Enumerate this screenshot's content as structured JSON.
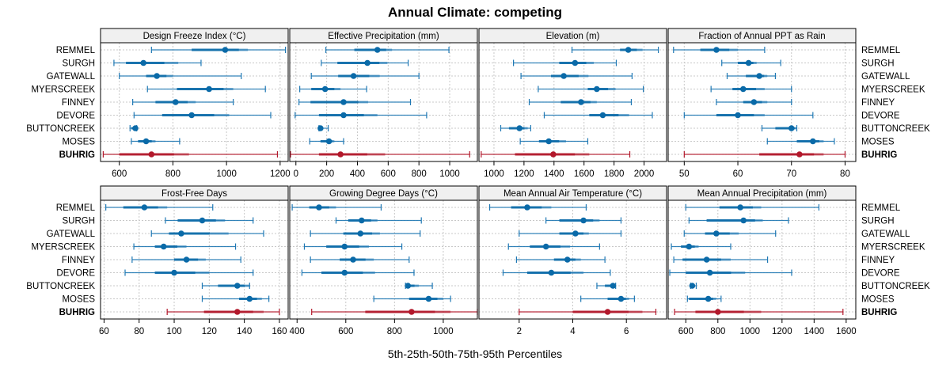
{
  "chart_data": {
    "type": "dot-interval",
    "title": "Annual Climate: competing",
    "xlabel": "5th-25th-50th-75th-95th Percentiles",
    "categories": [
      "REMMEL",
      "SURGH",
      "GATEWALL",
      "MYERSCREEK",
      "FINNEY",
      "DEVORE",
      "BUTTONCREEK",
      "MOSES",
      "BUHRIG"
    ],
    "highlight_category": "BUHRIG",
    "colors": {
      "default": "#1f78b4",
      "default_point": "#0a6aa8",
      "highlight": "#b2182b",
      "strip_bg": "#f0f0f0",
      "grid": "#c8c8c8"
    },
    "grid": true,
    "panels": [
      {
        "title": "Design Freeze Index (°C)",
        "ticks": [
          600,
          800,
          1000,
          1200
        ],
        "xlim": [
          530,
          1230
        ],
        "percentiles": [
          [
            720,
            870,
            995,
            1080,
            1220
          ],
          [
            580,
            625,
            690,
            820,
            905
          ],
          [
            600,
            700,
            740,
            800,
            1055
          ],
          [
            705,
            815,
            935,
            1025,
            1145
          ],
          [
            650,
            735,
            810,
            885,
            1025
          ],
          [
            655,
            760,
            870,
            1010,
            1165
          ],
          [
            640,
            645,
            660,
            662,
            665
          ],
          [
            645,
            670,
            700,
            735,
            825
          ],
          [
            540,
            600,
            720,
            860,
            1190
          ]
        ]
      },
      {
        "title": "Effective Precipitation (mm)",
        "ticks": [
          0,
          200,
          400,
          600,
          800,
          1000
        ],
        "xlim": [
          -40,
          1180
        ],
        "percentiles": [
          [
            195,
            380,
            530,
            625,
            995
          ],
          [
            165,
            270,
            465,
            595,
            730
          ],
          [
            100,
            275,
            375,
            545,
            800
          ],
          [
            25,
            100,
            190,
            290,
            460
          ],
          [
            20,
            95,
            310,
            470,
            745
          ],
          [
            -5,
            150,
            310,
            530,
            850
          ],
          [
            150,
            155,
            160,
            175,
            210
          ],
          [
            90,
            160,
            215,
            250,
            310
          ],
          [
            -35,
            150,
            290,
            580,
            1130
          ]
        ]
      },
      {
        "title": "Elevation (m)",
        "ticks": [
          1000,
          1200,
          1400,
          1600,
          1800,
          2000
        ],
        "xlim": [
          900,
          2150
        ],
        "percentiles": [
          [
            1520,
            1840,
            1895,
            1990,
            2095
          ],
          [
            1130,
            1435,
            1540,
            1665,
            1815
          ],
          [
            1180,
            1380,
            1465,
            1630,
            1920
          ],
          [
            1295,
            1625,
            1685,
            1810,
            1995
          ],
          [
            1235,
            1445,
            1580,
            1685,
            1915
          ],
          [
            1335,
            1635,
            1725,
            1900,
            2055
          ],
          [
            1045,
            1100,
            1170,
            1225,
            1245
          ],
          [
            1175,
            1300,
            1365,
            1480,
            1625
          ],
          [
            915,
            1140,
            1395,
            1635,
            1905
          ]
        ]
      },
      {
        "title": "Fraction of Annual PPT as Rain",
        "ticks": [
          50,
          60,
          70,
          80
        ],
        "xlim": [
          47,
          82
        ],
        "percentiles": [
          [
            48,
            53,
            56,
            60,
            65
          ],
          [
            57,
            60,
            62,
            63.5,
            68
          ],
          [
            58,
            61.5,
            64,
            65.5,
            67
          ],
          [
            55,
            59,
            61,
            65,
            70
          ],
          [
            56,
            61,
            63,
            65.5,
            70
          ],
          [
            50,
            56,
            60,
            65,
            74
          ],
          [
            64.5,
            67,
            70,
            71,
            71
          ],
          [
            65.5,
            71,
            74,
            76,
            78
          ],
          [
            50,
            64,
            71.5,
            76,
            80
          ]
        ]
      },
      {
        "title": "Frost-Free Days",
        "ticks": [
          60,
          80,
          100,
          120,
          140,
          160
        ],
        "xlim": [
          58,
          165
        ],
        "percentiles": [
          [
            61,
            71,
            83,
            96,
            122
          ],
          [
            95,
            102,
            116,
            129,
            145
          ],
          [
            87,
            97,
            104,
            131,
            151
          ],
          [
            77,
            89,
            94,
            107,
            135
          ],
          [
            76,
            100,
            107,
            118,
            138
          ],
          [
            72,
            89,
            100,
            120,
            145
          ],
          [
            116,
            125,
            136,
            143,
            143
          ],
          [
            116,
            137,
            143,
            150,
            154
          ],
          [
            96,
            117,
            136,
            151,
            160
          ]
        ]
      },
      {
        "title": "Growing Degree Days (°C)",
        "ticks": [
          400,
          600,
          800,
          1000
        ],
        "xlim": [
          370,
          1140
        ],
        "percentiles": [
          [
            380,
            450,
            490,
            560,
            745
          ],
          [
            560,
            610,
            665,
            730,
            910
          ],
          [
            455,
            590,
            660,
            740,
            905
          ],
          [
            430,
            520,
            595,
            695,
            830
          ],
          [
            455,
            575,
            630,
            715,
            860
          ],
          [
            420,
            500,
            595,
            720,
            880
          ],
          [
            845,
            850,
            855,
            900,
            955
          ],
          [
            715,
            860,
            940,
            1000,
            1030
          ],
          [
            460,
            680,
            870,
            1030,
            1140
          ]
        ]
      },
      {
        "title": "Mean Annual Air Temperature (°C)",
        "ticks": [
          2,
          4,
          6
        ],
        "xlim": [
          0.5,
          7.5
        ],
        "percentiles": [
          [
            0.9,
            1.7,
            2.3,
            3.2,
            4.5
          ],
          [
            3.0,
            3.5,
            4.4,
            5.0,
            5.8
          ],
          [
            2.0,
            3.5,
            4.1,
            4.6,
            5.8
          ],
          [
            1.6,
            2.4,
            3.0,
            3.9,
            5.0
          ],
          [
            1.9,
            3.3,
            3.8,
            4.3,
            5.2
          ],
          [
            1.4,
            2.3,
            3.2,
            4.4,
            5.4
          ],
          [
            4.9,
            5.2,
            5.5,
            5.5,
            5.6
          ],
          [
            4.3,
            5.3,
            5.8,
            6.1,
            6.3
          ],
          [
            2.0,
            4.0,
            5.3,
            6.6,
            7.1
          ]
        ]
      },
      {
        "title": "Mean Annual Precipitation (mm)",
        "ticks": [
          600,
          800,
          1000,
          1200,
          1400,
          1600
        ],
        "xlim": [
          490,
          1660
        ],
        "percentiles": [
          [
            600,
            810,
            940,
            1070,
            1430
          ],
          [
            620,
            730,
            960,
            1080,
            1240
          ],
          [
            590,
            720,
            790,
            930,
            1160
          ],
          [
            510,
            570,
            620,
            680,
            880
          ],
          [
            525,
            580,
            730,
            880,
            1110
          ],
          [
            500,
            600,
            750,
            970,
            1260
          ],
          [
            630,
            635,
            640,
            650,
            665
          ],
          [
            610,
            620,
            740,
            790,
            820
          ],
          [
            530,
            660,
            800,
            1070,
            1580
          ]
        ]
      }
    ]
  }
}
